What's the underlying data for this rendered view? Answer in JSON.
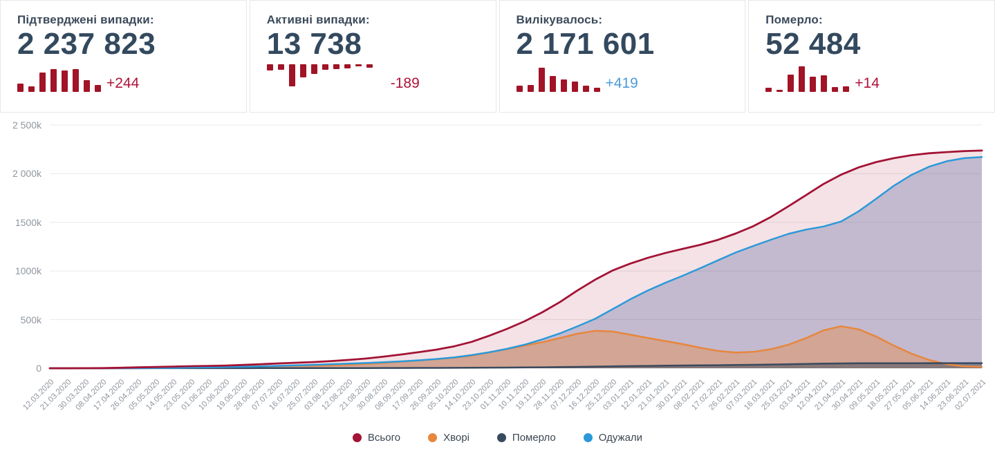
{
  "cards": [
    {
      "title": "Підтверджені випадки:",
      "value": "2 237 823",
      "delta": "+244",
      "delta_color": "#b01239",
      "spark_direction": "up",
      "spark": [
        12,
        8,
        28,
        33,
        31,
        33,
        17,
        10
      ]
    },
    {
      "title": "Активні випадки:",
      "value": "13 738",
      "delta": "-189",
      "delta_color": "#b01239",
      "spark_direction": "down",
      "spark": [
        9,
        8,
        32,
        19,
        14,
        8,
        7,
        6,
        3,
        5
      ]
    },
    {
      "title": "Вилікувалось:",
      "value": "2 171 601",
      "delta": "+419",
      "delta_color": "#4d9bd9",
      "spark_direction": "up",
      "spark": [
        9,
        10,
        35,
        23,
        18,
        15,
        9,
        6
      ]
    },
    {
      "title": "Померло:",
      "value": "52 484",
      "delta": "+14",
      "delta_color": "#b01239",
      "spark_direction": "up",
      "spark": [
        6,
        3,
        25,
        37,
        22,
        24,
        7,
        8
      ]
    }
  ],
  "ui": {
    "spark_color": "#a11326",
    "grid_color": "#e8e8e8",
    "axis_text_color": "#8f969e"
  },
  "chart_data": {
    "type": "area",
    "title": "",
    "xlabel": "",
    "ylabel": "",
    "grid": true,
    "legend_position": "bottom",
    "y_ticks": [
      "2 500k",
      "2 000k",
      "1500k",
      "1000k",
      "500k",
      "0"
    ],
    "y_tick_values_k": [
      2500,
      2000,
      1500,
      1000,
      500,
      0
    ],
    "ylim_k": [
      0,
      2500
    ],
    "x": [
      "12.03.2020",
      "21.03.2020",
      "30.03.2020",
      "08.04.2020",
      "17.04.2020",
      "26.04.2020",
      "05.05.2020",
      "14.05.2020",
      "23.05.2020",
      "01.06.2020",
      "10.06.2020",
      "19.06.2020",
      "28.06.2020",
      "07.07.2020",
      "16.07.2020",
      "25.07.2020",
      "03.08.2020",
      "12.08.2020",
      "21.08.2020",
      "30.08.2020",
      "08.09.2020",
      "17.09.2020",
      "26.09.2020",
      "05.10.2020",
      "14.10.2020",
      "23.10.2020",
      "01.11.2020",
      "10.11.2020",
      "19.11.2020",
      "28.11.2020",
      "07.12.2020",
      "16.12.2020",
      "25.12.2020",
      "03.01.2021",
      "12.01.2021",
      "21.01.2021",
      "30.01.2021",
      "08.02.2021",
      "17.02.2021",
      "26.02.2021",
      "07.03.2021",
      "16.03.2021",
      "25.03.2021",
      "03.04.2021",
      "12.04.2021",
      "21.04.2021",
      "30.04.2021",
      "09.05.2021",
      "18.05.2021",
      "27.05.2021",
      "05.06.2021",
      "14.06.2021",
      "23.06.2021",
      "02.07.2021"
    ],
    "series": [
      {
        "name": "Всього",
        "color": "#a21335",
        "fill": "rgba(162,19,53,0.12)",
        "values_k": [
          0,
          0.1,
          0.5,
          1.7,
          5,
          9,
          13,
          17,
          21,
          24,
          28,
          34,
          42,
          50,
          57,
          64,
          74,
          86,
          100,
          120,
          142,
          166,
          192,
          226,
          272,
          335,
          405,
          483,
          575,
          680,
          800,
          910,
          1005,
          1075,
          1135,
          1185,
          1228,
          1270,
          1320,
          1385,
          1460,
          1555,
          1665,
          1780,
          1895,
          1990,
          2065,
          2120,
          2160,
          2190,
          2210,
          2222,
          2232,
          2238
        ]
      },
      {
        "name": "Хворі",
        "color": "#e8863c",
        "fill": "rgba(232,134,60,0.40)",
        "values_k": [
          0,
          0.1,
          0.5,
          1.5,
          4.5,
          7.5,
          10,
          12,
          13,
          13,
          14,
          17,
          21,
          24,
          26,
          27,
          30,
          36,
          44,
          55,
          68,
          81,
          93,
          110,
          131,
          164,
          198,
          232,
          268,
          310,
          355,
          385,
          378,
          345,
          312,
          280,
          248,
          210,
          178,
          162,
          168,
          196,
          242,
          310,
          390,
          432,
          400,
          325,
          232,
          150,
          85,
          42,
          20,
          14
        ]
      },
      {
        "name": "Померло",
        "color": "#3a4a5e",
        "fill": "rgba(58,74,94,0.50)",
        "values_k": [
          0,
          0,
          0,
          0.1,
          0.1,
          0.3,
          0.4,
          0.5,
          0.6,
          0.8,
          0.9,
          1,
          1.1,
          1.3,
          1.4,
          1.6,
          1.8,
          2,
          2.2,
          2.5,
          2.9,
          3.3,
          3.8,
          4.4,
          5.2,
          6.2,
          7.4,
          8.7,
          10.2,
          12,
          14.5,
          17,
          19.7,
          22,
          24.3,
          26.5,
          28.4,
          30,
          31.6,
          33.5,
          35.7,
          38.3,
          41.3,
          44.3,
          47.3,
          49.5,
          50.8,
          51.5,
          51.9,
          52.1,
          52.3,
          52.4,
          52.4,
          52.5
        ]
      },
      {
        "name": "Одужали",
        "color": "#2b99d9",
        "fill": "rgba(93,104,160,0.32)",
        "values_k": [
          0,
          0,
          0,
          0.1,
          0.4,
          1.2,
          2.6,
          4.5,
          7.4,
          10.2,
          13.1,
          16,
          19.9,
          24.7,
          29.6,
          35.4,
          42.2,
          48,
          53.8,
          62.5,
          71.1,
          81.7,
          95.2,
          111.6,
          135.8,
          164.8,
          199.6,
          242.3,
          296.8,
          358,
          430.5,
          508,
          607.3,
          708,
          798.7,
          878.5,
          951.6,
          1030,
          1110.4,
          1189.5,
          1256.3,
          1320.7,
          1381.7,
          1425.7,
          1457.7,
          1508.5,
          1614.2,
          1743.5,
          1876.1,
          1987.9,
          2072.7,
          2127.6,
          2159.6,
          2171.5
        ]
      }
    ]
  }
}
